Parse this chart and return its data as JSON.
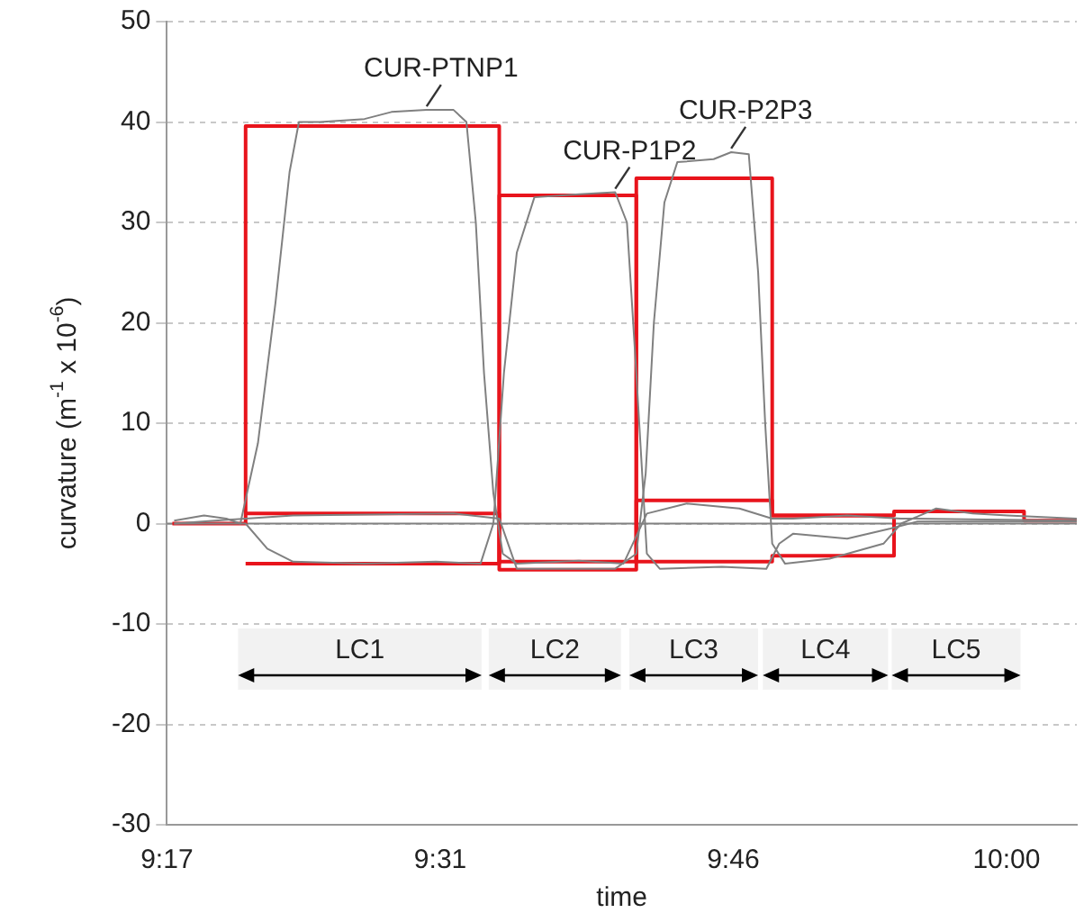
{
  "chart_data": {
    "type": "line",
    "xlabel": "time",
    "ylabel": "curvature (m$^{-1}$ x 10$^{-6}$)",
    "xlim": [
      9.2833,
      10.06
    ],
    "xticks": [
      {
        "value": 9.2833,
        "label": "9:17"
      },
      {
        "value": 9.5167,
        "label": "9:31"
      },
      {
        "value": 9.7667,
        "label": "9:46"
      },
      {
        "value": 10.0,
        "label": "10:00"
      }
    ],
    "ylim": [
      -30,
      50
    ],
    "yticks": [
      -30,
      -20,
      -10,
      0,
      10,
      20,
      30,
      40,
      50
    ],
    "grid": "y",
    "legend": false,
    "marker": "none",
    "line_style": "solid",
    "series": [
      {
        "name": "CUR-PTNP1",
        "color": "#808080",
        "x": [
          9.2895,
          9.315,
          9.334,
          9.346,
          9.361,
          9.376,
          9.388,
          9.396,
          9.414,
          9.452,
          9.475,
          9.505,
          9.528,
          9.539,
          9.547,
          9.554,
          9.562,
          9.57,
          9.582,
          9.635,
          9.673,
          9.681,
          9.693,
          9.727,
          9.772,
          9.8,
          9.818,
          9.864,
          9.91,
          10.06
        ],
        "values": [
          0.3,
          0.8,
          0.5,
          0,
          8,
          22,
          35,
          40,
          40,
          40.3,
          41,
          41.2,
          41.2,
          40,
          30,
          15,
          3,
          -3,
          -4,
          -3.7,
          -4,
          -2,
          1,
          2,
          1.5,
          0.5,
          0.5,
          0.8,
          0.5,
          0.3
        ]
      },
      {
        "name": "CUR-P1P2",
        "color": "#808080",
        "x": [
          9.2895,
          9.3505,
          9.369,
          9.391,
          9.452,
          9.513,
          9.551,
          9.562,
          9.571,
          9.582,
          9.597,
          9.635,
          9.666,
          9.676,
          9.684,
          9.693,
          9.704,
          9.757,
          9.795,
          9.806,
          9.818,
          9.864,
          9.901,
          9.924,
          10.06
        ],
        "values": [
          0,
          0,
          -2.5,
          -3.8,
          -4,
          -3.8,
          -4,
          0,
          15,
          27,
          32.5,
          32.8,
          33,
          30,
          15,
          -3,
          -4.5,
          -4.3,
          -4.5,
          -2,
          -1,
          -1.5,
          -0.5,
          0.2,
          0.2
        ]
      },
      {
        "name": "CUR-P2P3",
        "color": "#808080",
        "x": [
          9.2895,
          9.3505,
          9.391,
          9.528,
          9.567,
          9.582,
          9.666,
          9.684,
          9.692,
          9.699,
          9.708,
          9.719,
          9.75,
          9.765,
          9.78,
          9.788,
          9.794,
          9.8,
          9.811,
          9.849,
          9.895,
          9.91,
          9.94,
          9.971,
          10.001,
          10.06
        ],
        "values": [
          0,
          0.5,
          0.8,
          1,
          0.5,
          -4.5,
          -4.5,
          -3,
          5,
          20,
          32,
          36,
          36.3,
          37,
          36.8,
          25,
          10,
          -2,
          -4,
          -3.5,
          -2,
          0,
          1.5,
          1,
          0.8,
          0.5
        ]
      },
      {
        "type": "step",
        "color": "#e8141c",
        "x": [
          9.288,
          9.3505,
          9.567,
          9.684,
          9.8,
          9.904,
          10.015,
          10.06
        ],
        "values": [
          0,
          39.6,
          -4.6,
          2.3,
          0.8,
          1.2,
          0.3,
          0.3
        ]
      },
      {
        "type": "step",
        "color": "#e8141c",
        "x": [
          9.3505,
          9.567,
          9.684,
          9.8,
          9.904
        ],
        "values": [
          -4.0,
          32.7,
          -3.8,
          -3.2,
          0.5
        ]
      },
      {
        "type": "step",
        "color": "#e8141c",
        "x": [
          9.3505,
          9.567,
          9.684,
          9.8,
          9.904
        ],
        "values": [
          1.0,
          -3.8,
          34.4,
          0.8,
          0.8
        ]
      }
    ],
    "ref_lines": [
      {
        "axis": "y",
        "value": 0,
        "color": "#808080"
      }
    ],
    "bands": [
      {
        "axis": "x",
        "from": 9.344,
        "to": 9.552,
        "label": "LC1"
      },
      {
        "axis": "x",
        "from": 9.558,
        "to": 9.671,
        "label": "LC2"
      },
      {
        "axis": "x",
        "from": 9.678,
        "to": 9.788,
        "label": "LC3"
      },
      {
        "axis": "x",
        "from": 9.792,
        "to": 9.899,
        "label": "LC4"
      },
      {
        "axis": "x",
        "from": 9.902,
        "to": 10.012,
        "label": "LC5"
      }
    ]
  }
}
